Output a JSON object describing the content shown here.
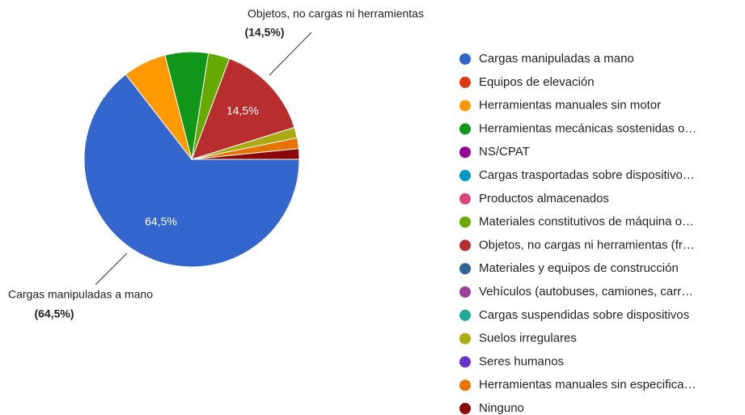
{
  "chart_data": {
    "type": "pie",
    "categories": [
      "Cargas manipuladas a mano",
      "Equipos de elevación",
      "Herramientas manuales sin motor",
      "Herramientas mecánicas sostenidas o…",
      "NS/CPAT",
      "Cargas trasportadas sobre dispositivo…",
      "Productos almacenados",
      "Materiales constitutivos de máquina o…",
      "Objetos, no cargas ni herramientas (fr…",
      "Materiales y equipos de construcción",
      "Vehículos (autobuses, camiones, carr…",
      "Cargas suspendidas sobre dispositivos",
      "Suelos irregulares",
      "Seres humanos",
      "Herramientas manuales sin especifica…",
      "Ninguno"
    ],
    "values": [
      64.5,
      0,
      6.5,
      6.5,
      0,
      0,
      0,
      3.2,
      14.5,
      0,
      0,
      0,
      1.6,
      0,
      1.6,
      1.6
    ],
    "value_labels": [
      "64,5%",
      null,
      null,
      null,
      null,
      null,
      null,
      null,
      "14,5%",
      null,
      null,
      null,
      null,
      null,
      null,
      null
    ],
    "colors": [
      "#3366cc",
      "#dc3912",
      "#ff9900",
      "#109618",
      "#990099",
      "#0099c6",
      "#dd4477",
      "#66aa00",
      "#b82e2e",
      "#316395",
      "#994499",
      "#22aa99",
      "#aaaa11",
      "#6633cc",
      "#e67300",
      "#8b0707"
    ],
    "annotations": [
      {
        "text": "Objetos, no cargas ni herramientas",
        "value_label": "(14,5%)"
      },
      {
        "text": "Cargas manipuladas a mano",
        "value_label": "(64,5%)"
      }
    ],
    "legend": "right"
  }
}
